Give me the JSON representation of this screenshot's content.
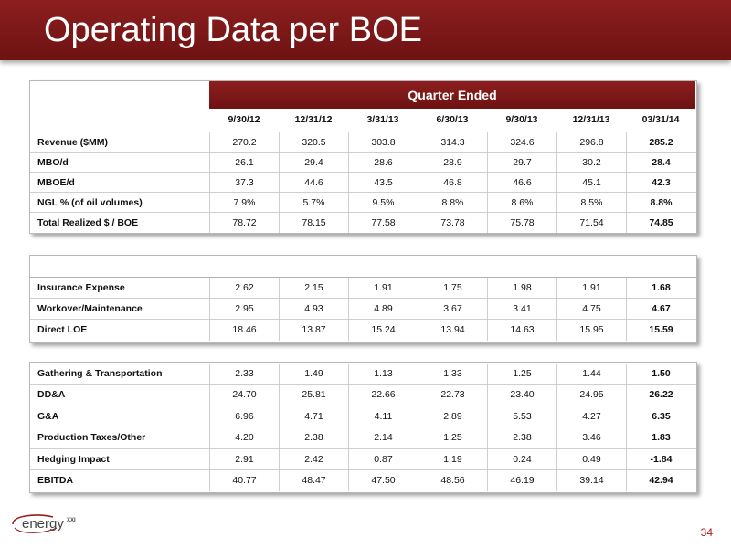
{
  "title": "Operating Data per BOE",
  "table_header": "Quarter Ended",
  "columns": [
    "9/30/12",
    "12/31/12",
    "3/31/13",
    "6/30/13",
    "9/30/13",
    "12/31/13",
    "03/31/14"
  ],
  "section1": [
    {
      "label": "Revenue ($MM)",
      "values": [
        "270.2",
        "320.5",
        "303.8",
        "314.3",
        "324.6",
        "296.8",
        "285.2"
      ]
    },
    {
      "label": "MBO/d",
      "values": [
        "26.1",
        "29.4",
        "28.6",
        "28.9",
        "29.7",
        "30.2",
        "28.4"
      ]
    },
    {
      "label": "MBOE/d",
      "values": [
        "37.3",
        "44.6",
        "43.5",
        "46.8",
        "46.6",
        "45.1",
        "42.3"
      ]
    },
    {
      "label": "NGL % (of oil volumes)",
      "values": [
        "7.9%",
        "5.7%",
        "9.5%",
        "8.8%",
        "8.6%",
        "8.5%",
        "8.8%"
      ]
    },
    {
      "label": "Total Realized $ / BOE",
      "values": [
        "78.72",
        "78.15",
        "77.58",
        "73.78",
        "75.78",
        "71.54",
        "74.85"
      ]
    }
  ],
  "section2": [
    {
      "label": "Insurance Expense",
      "values": [
        "2.62",
        "2.15",
        "1.91",
        "1.75",
        "1.98",
        "1.91",
        "1.68"
      ]
    },
    {
      "label": "Workover/Maintenance",
      "values": [
        "2.95",
        "4.93",
        "4.89",
        "3.67",
        "3.41",
        "4.75",
        "4.67"
      ]
    },
    {
      "label": "Direct LOE",
      "values": [
        "18.46",
        "13.87",
        "15.24",
        "13.94",
        "14.63",
        "15.95",
        "15.59"
      ]
    }
  ],
  "section3": [
    {
      "label": "Gathering & Transportation",
      "values": [
        "2.33",
        "1.49",
        "1.13",
        "1.33",
        "1.25",
        "1.44",
        "1.50"
      ]
    },
    {
      "label": "DD&A",
      "values": [
        "24.70",
        "25.81",
        "22.66",
        "22.73",
        "23.40",
        "24.95",
        "26.22"
      ]
    },
    {
      "label": "G&A",
      "values": [
        "6.96",
        "4.71",
        "4.11",
        "2.89",
        "5.53",
        "4.27",
        "6.35"
      ]
    },
    {
      "label": "Production Taxes/Other",
      "values": [
        "4.20",
        "2.38",
        "2.14",
        "1.25",
        "2.38",
        "3.46",
        "1.83"
      ]
    },
    {
      "label": "Hedging Impact",
      "values": [
        "2.91",
        "2.42",
        "0.87",
        "1.19",
        "0.24",
        "0.49",
        "-1.84"
      ]
    },
    {
      "label": "EBITDA",
      "values": [
        "40.77",
        "48.47",
        "47.50",
        "48.56",
        "46.19",
        "39.14",
        "42.94"
      ]
    }
  ],
  "logo": {
    "text": "energy",
    "superscript": "XXI"
  },
  "page_number": "34",
  "colors": {
    "brand_red": "#7a1818",
    "page_number": "#b01818"
  }
}
